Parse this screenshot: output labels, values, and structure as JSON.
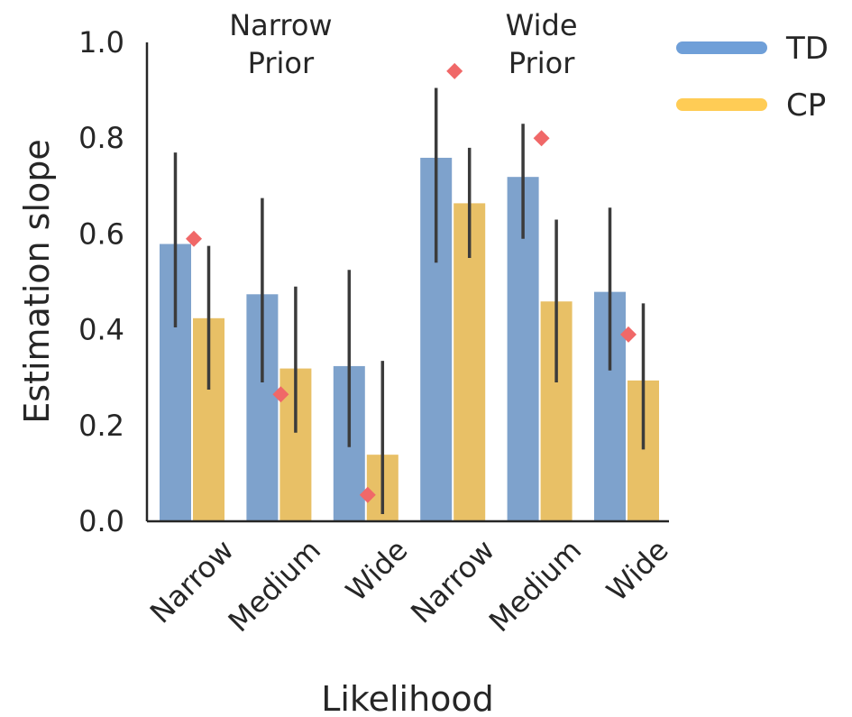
{
  "chart_data": {
    "type": "bar",
    "categories": [
      "Narrow",
      "Medium",
      "Wide",
      "Narrow",
      "Medium",
      "Wide"
    ],
    "groups": [
      {
        "label_lines": [
          "Narrow",
          "Prior"
        ],
        "categories": [
          0,
          1,
          2
        ]
      },
      {
        "label_lines": [
          "Wide",
          "Prior"
        ],
        "categories": [
          3,
          4,
          5
        ]
      }
    ],
    "series": [
      {
        "name": "TD",
        "color": "#7ea2cc",
        "values": [
          0.58,
          0.475,
          0.325,
          0.76,
          0.72,
          0.48
        ],
        "ci": [
          [
            0.405,
            0.77
          ],
          [
            0.29,
            0.675
          ],
          [
            0.155,
            0.525
          ],
          [
            0.54,
            0.905
          ],
          [
            0.59,
            0.83
          ],
          [
            0.315,
            0.655
          ]
        ]
      },
      {
        "name": "CP",
        "color": "#e8c066",
        "values": [
          0.425,
          0.32,
          0.14,
          0.665,
          0.46,
          0.295
        ],
        "ci": [
          [
            0.275,
            0.575
          ],
          [
            0.185,
            0.49
          ],
          [
            0.015,
            0.335
          ],
          [
            0.55,
            0.78
          ],
          [
            0.29,
            0.63
          ],
          [
            0.15,
            0.455
          ]
        ]
      }
    ],
    "markers": {
      "shape": "diamond",
      "color": "#f06868",
      "values": [
        0.59,
        0.265,
        0.055,
        0.94,
        0.8,
        0.39
      ]
    },
    "xlabel": "Likelihood",
    "ylabel": "Estimation slope",
    "ylim": [
      0,
      1.0
    ],
    "yticks": [
      "0.0",
      "0.2",
      "0.4",
      "0.6",
      "0.8",
      "1.0"
    ],
    "grid": false,
    "legend": {
      "placement": "top-right",
      "colors": {
        "TD": "#6f9fd8",
        "CP": "#ffcc55"
      }
    },
    "errorbar_color": "#3b3b3b"
  }
}
